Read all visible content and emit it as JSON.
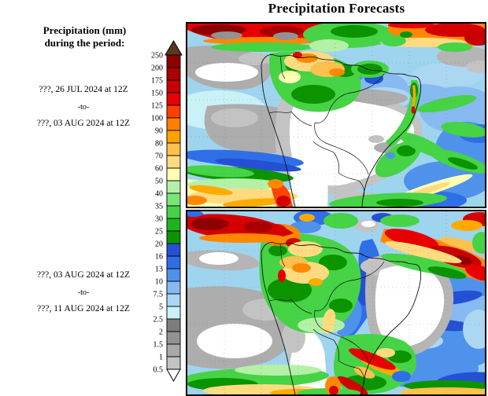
{
  "title": "Precipitation Forecasts",
  "sidebar": {
    "heading_line1": "Precipitation (mm)",
    "heading_line2": "during the period:",
    "period1": {
      "start": "???, 26 JUL 2024 at 12Z",
      "separator": "-to-",
      "end": "???, 03 AUG 2024 at 12Z"
    },
    "period2": {
      "start": "???, 03 AUG 2024 at 12Z",
      "separator": "-to-",
      "end": "???, 11 AUG 2024 at 12Z"
    }
  },
  "colorbar": {
    "units": "mm",
    "tick_labels": [
      "250",
      "200",
      "175",
      "150",
      "125",
      "100",
      "90",
      "80",
      "70",
      "60",
      "50",
      "40",
      "35",
      "30",
      "25",
      "20",
      "16",
      "13",
      "10",
      "7.5",
      "5",
      "2.5",
      "2",
      "1.5",
      "1",
      "0.5"
    ],
    "segment_colors_top_to_bottom": [
      "#8f0000",
      "#ad0000",
      "#c80000",
      "#e80000",
      "#ff4000",
      "#ff8000",
      "#ffa200",
      "#ffc14d",
      "#ffdb80",
      "#ffffb3",
      "#b4f0a6",
      "#78e578",
      "#46d346",
      "#1fb41f",
      "#0b9400",
      "#2451d4",
      "#2e6fe8",
      "#4f92ec",
      "#86baf0",
      "#abd7f2",
      "#c9f1f6",
      "#7d7d7d",
      "#929292",
      "#a9a9a9",
      "#c3c3c3"
    ],
    "above_max_color": "#5a3723",
    "below_min_color": "#ffffff"
  },
  "chart_data": {
    "type": "heatmap",
    "title": "Precipitation Forecasts",
    "units": "mm",
    "legend_position": "left",
    "levels_mm": [
      0.5,
      1,
      1.5,
      2,
      2.5,
      5,
      7.5,
      10,
      13,
      16,
      20,
      25,
      30,
      35,
      40,
      50,
      60,
      70,
      80,
      90,
      100,
      125,
      150,
      175,
      200,
      250
    ],
    "level_colors_low_to_high": [
      "#c3c3c3",
      "#a9a9a9",
      "#929292",
      "#7d7d7d",
      "#c9f1f6",
      "#abd7f2",
      "#86baf0",
      "#4f92ec",
      "#2e6fe8",
      "#2451d4",
      "#0b9400",
      "#1fb41f",
      "#46d346",
      "#78e578",
      "#b4f0a6",
      "#ffffb3",
      "#ffdb80",
      "#ffc14d",
      "#ffa200",
      "#ff8000",
      "#ff4000",
      "#e80000",
      "#c80000",
      "#ad0000",
      "#8f0000"
    ],
    "panels": [
      {
        "period": "???, 26 JUL 2024 at 12Z -to- ???, 03 AUG 2024 at 12Z"
      },
      {
        "period": "???, 03 AUG 2024 at 12Z -to- ???, 11 AUG 2024 at 12Z"
      }
    ]
  }
}
